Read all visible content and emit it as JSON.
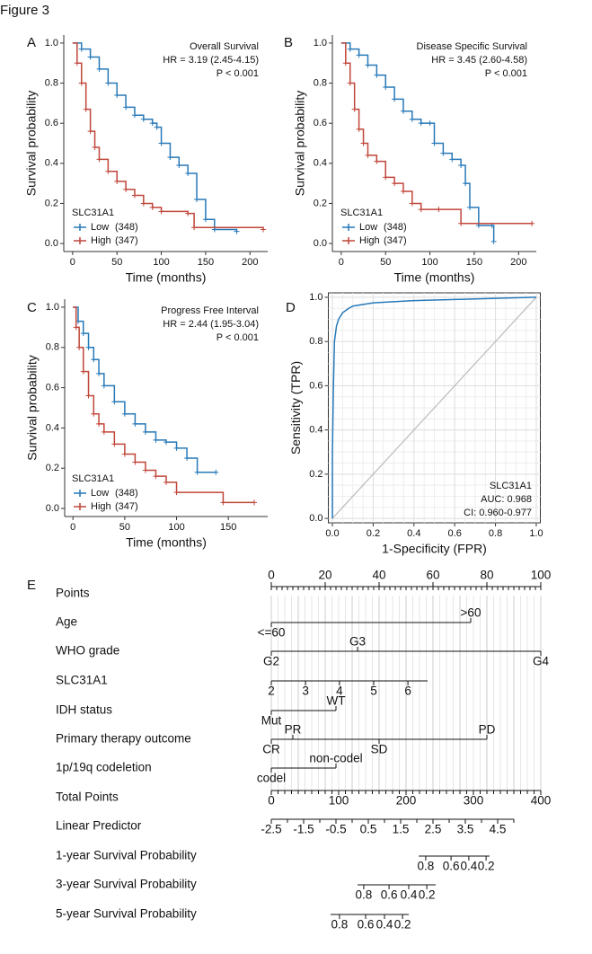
{
  "figure_title": "Figure 3",
  "chart_data": [
    {
      "type": "line",
      "step": true,
      "panel": "A",
      "ylabel": "Survival probability",
      "xlabel": "Time (months)",
      "annotations": [
        "Overall Survival",
        "HR = 3.19 (2.45-4.15)",
        "P < 0.001"
      ],
      "legend_title": "SLC31A1",
      "xlim": [
        -10,
        220
      ],
      "ylim": [
        -0.04,
        1.04
      ],
      "xticks": [
        0,
        50,
        100,
        150,
        200
      ],
      "yticks": [
        {
          "value": 0,
          "label": "0.0"
        },
        0.2,
        0.4,
        0.6,
        0.8,
        {
          "value": 1,
          "label": "1.0"
        }
      ],
      "series": [
        {
          "name": "Low",
          "count_label": "(348)",
          "color": "#2779b8",
          "x": [
            0,
            10,
            20,
            30,
            40,
            50,
            60,
            70,
            80,
            90,
            95,
            100,
            110,
            120,
            130,
            140,
            150,
            160,
            185
          ],
          "values": [
            1,
            0.97,
            0.93,
            0.87,
            0.8,
            0.74,
            0.68,
            0.64,
            0.62,
            0.6,
            0.58,
            0.5,
            0.43,
            0.39,
            0.35,
            0.22,
            0.12,
            0.07,
            0.06
          ]
        },
        {
          "name": "High",
          "count_label": "(347)",
          "color": "#c0463a",
          "x": [
            0,
            5,
            10,
            15,
            20,
            25,
            30,
            40,
            50,
            60,
            70,
            80,
            90,
            100,
            130,
            137,
            215
          ],
          "values": [
            1,
            0.9,
            0.8,
            0.67,
            0.56,
            0.48,
            0.42,
            0.36,
            0.31,
            0.27,
            0.24,
            0.2,
            0.18,
            0.16,
            0.15,
            0.08,
            0.07
          ]
        }
      ]
    },
    {
      "type": "line",
      "step": true,
      "panel": "B",
      "ylabel": "Survival probability",
      "xlabel": "Time (months)",
      "annotations": [
        "Disease Specific Survival",
        "HR = 3.45 (2.60-4.58)",
        "P < 0.001"
      ],
      "legend_title": "SLC31A1",
      "xlim": [
        -10,
        220
      ],
      "ylim": [
        -0.04,
        1.04
      ],
      "xticks": [
        0,
        50,
        100,
        150,
        200
      ],
      "yticks": [
        {
          "value": 0,
          "label": "0.0"
        },
        0.2,
        0.4,
        0.6,
        0.8,
        {
          "value": 1,
          "label": "1.0"
        }
      ],
      "series": [
        {
          "name": "Low",
          "count_label": "(348)",
          "color": "#2779b8",
          "x": [
            0,
            10,
            20,
            30,
            40,
            50,
            60,
            70,
            80,
            90,
            100,
            105,
            115,
            125,
            135,
            140,
            145,
            155,
            170,
            172
          ],
          "values": [
            1,
            0.97,
            0.94,
            0.89,
            0.84,
            0.78,
            0.72,
            0.66,
            0.62,
            0.6,
            0.6,
            0.5,
            0.45,
            0.42,
            0.39,
            0.3,
            0.18,
            0.09,
            0.09,
            0.01
          ]
        },
        {
          "name": "High",
          "count_label": "(347)",
          "color": "#c0463a",
          "x": [
            0,
            5,
            10,
            15,
            20,
            25,
            30,
            40,
            50,
            60,
            70,
            80,
            90,
            110,
            135,
            215
          ],
          "values": [
            1,
            0.9,
            0.8,
            0.67,
            0.57,
            0.5,
            0.44,
            0.41,
            0.33,
            0.3,
            0.26,
            0.2,
            0.17,
            0.17,
            0.1,
            0.1
          ]
        }
      ]
    },
    {
      "type": "line",
      "step": true,
      "panel": "C",
      "ylabel": "Survival probability",
      "xlabel": "Time (months)",
      "annotations": [
        "Progress Free Interval",
        "HR = 2.44 (1.95-3.04)",
        "P < 0.001"
      ],
      "legend_title": "SLC31A1",
      "xlim": [
        -8,
        188
      ],
      "ylim": [
        -0.04,
        1.04
      ],
      "xticks": [
        0,
        50,
        100,
        150
      ],
      "yticks": [
        {
          "value": 0,
          "label": "0.0"
        },
        0.2,
        0.4,
        0.6,
        0.8,
        {
          "value": 1,
          "label": "1.0"
        }
      ],
      "series": [
        {
          "name": "Low",
          "count_label": "(348)",
          "color": "#2779b8",
          "x": [
            0,
            5,
            10,
            15,
            20,
            25,
            30,
            40,
            50,
            60,
            70,
            80,
            90,
            100,
            110,
            120,
            138
          ],
          "values": [
            1,
            0.93,
            0.87,
            0.8,
            0.74,
            0.67,
            0.61,
            0.53,
            0.47,
            0.42,
            0.38,
            0.34,
            0.33,
            0.3,
            0.25,
            0.18,
            0.18
          ]
        },
        {
          "name": "High",
          "count_label": "(347)",
          "color": "#c0463a",
          "x": [
            0,
            3,
            6,
            10,
            15,
            20,
            25,
            30,
            40,
            50,
            60,
            70,
            80,
            90,
            100,
            145,
            175
          ],
          "values": [
            1,
            0.9,
            0.8,
            0.68,
            0.56,
            0.47,
            0.42,
            0.38,
            0.32,
            0.27,
            0.23,
            0.19,
            0.16,
            0.13,
            0.08,
            0.03,
            0.03
          ]
        }
      ]
    },
    {
      "type": "line",
      "step": false,
      "panel": "D",
      "ylabel": "Sensitivity (TPR)",
      "xlabel": "1-Specificity (FPR)",
      "grid": true,
      "diagonal": true,
      "annotations": [
        "SLC31A1",
        "AUC: 0.968",
        "CI: 0.960-0.977"
      ],
      "xlim": [
        -0.02,
        1.02
      ],
      "ylim": [
        -0.02,
        1.02
      ],
      "xticks": [
        {
          "value": 0,
          "label": "0.0"
        },
        0.2,
        0.4,
        0.6,
        0.8,
        {
          "value": 1,
          "label": "1.0"
        }
      ],
      "yticks": [
        {
          "value": 0,
          "label": "0.0"
        },
        0.2,
        0.4,
        0.6,
        0.8,
        {
          "value": 1,
          "label": "1.0"
        }
      ],
      "series": [
        {
          "color": "#2779b8",
          "x": [
            0,
            0,
            0.005,
            0.01,
            0.02,
            0.03,
            0.05,
            0.08,
            0.1,
            0.2,
            0.4,
            0.6,
            0.8,
            1
          ],
          "values": [
            0,
            0.3,
            0.6,
            0.8,
            0.87,
            0.9,
            0.93,
            0.95,
            0.96,
            0.975,
            0.985,
            0.99,
            0.995,
            1
          ]
        }
      ]
    }
  ],
  "nomogram": {
    "panel": "E",
    "rows": [
      {
        "label": "Points",
        "kind": "points",
        "extent": [
          0,
          100
        ],
        "ticks": [
          {
            "value": 0,
            "label": "0",
            "pos": "above"
          },
          {
            "value": 20,
            "label": "20",
            "pos": "above"
          },
          {
            "value": 40,
            "label": "40",
            "pos": "above"
          },
          {
            "value": 60,
            "label": "60",
            "pos": "above"
          },
          {
            "value": 80,
            "label": "80",
            "pos": "above"
          },
          {
            "value": 100,
            "label": "100",
            "pos": "above"
          }
        ]
      },
      {
        "label": "Age",
        "extent": [
          0,
          74
        ],
        "ticks": [
          {
            "value": 0,
            "label": "<=60",
            "pos": "below"
          },
          {
            "value": 74,
            "label": ">60",
            "pos": "above"
          }
        ]
      },
      {
        "label": "WHO grade",
        "extent": [
          0,
          100
        ],
        "ticks": [
          {
            "value": 0,
            "label": "G2",
            "pos": "below"
          },
          {
            "value": 32,
            "label": "G3",
            "pos": "above"
          },
          {
            "value": 100,
            "label": "G4",
            "pos": "below"
          }
        ]
      },
      {
        "label": "SLC31A1",
        "extent": [
          0,
          58
        ],
        "ticks": [
          {
            "value": 0,
            "label": "2",
            "pos": "below"
          },
          {
            "value": 12.7,
            "label": "3",
            "pos": "below"
          },
          {
            "value": 25.3,
            "label": "4",
            "pos": "below"
          },
          {
            "value": 38,
            "label": "5",
            "pos": "below"
          },
          {
            "value": 50.7,
            "label": "6",
            "pos": "below"
          }
        ]
      },
      {
        "label": "IDH status",
        "extent": [
          0,
          24
        ],
        "ticks": [
          {
            "value": 0,
            "label": "Mut",
            "pos": "below"
          },
          {
            "value": 24,
            "label": "WT",
            "pos": "above"
          }
        ]
      },
      {
        "label": "Primary therapy outcome",
        "extent": [
          0,
          80
        ],
        "ticks": [
          {
            "value": 0,
            "label": "CR",
            "pos": "below"
          },
          {
            "value": 8,
            "label": "PR",
            "pos": "above"
          },
          {
            "value": 40,
            "label": "SD",
            "pos": "below"
          },
          {
            "value": 80,
            "label": "PD",
            "pos": "above"
          }
        ]
      },
      {
        "label": "1p/19q codeletion",
        "extent": [
          0,
          24
        ],
        "ticks": [
          {
            "value": 0,
            "label": "codel",
            "pos": "below"
          },
          {
            "value": 24,
            "label": "non-codel",
            "pos": "above"
          }
        ]
      },
      {
        "label": "Total Points",
        "kind": "minor",
        "extent": [
          0,
          100
        ],
        "ticks": [
          {
            "value": 0,
            "label": "0",
            "pos": "below"
          },
          {
            "value": 25,
            "label": "100",
            "pos": "below"
          },
          {
            "value": 50,
            "label": "200",
            "pos": "below"
          },
          {
            "value": 75,
            "label": "300",
            "pos": "below"
          },
          {
            "value": 100,
            "label": "400",
            "pos": "below"
          }
        ]
      },
      {
        "label": "Linear Predictor",
        "kind": "half",
        "extent": [
          0,
          90
        ],
        "ticks": [
          {
            "value": 0,
            "label": "-2.5",
            "pos": "below"
          },
          {
            "value": 12,
            "label": "-1.5",
            "pos": "below"
          },
          {
            "value": 24,
            "label": "-0.5",
            "pos": "below"
          },
          {
            "value": 36,
            "label": "0.5",
            "pos": "below"
          },
          {
            "value": 48,
            "label": "1.5",
            "pos": "below"
          },
          {
            "value": 60,
            "label": "2.5",
            "pos": "below"
          },
          {
            "value": 72,
            "label": "3.5",
            "pos": "below"
          },
          {
            "value": 84,
            "label": "4.5",
            "pos": "below"
          }
        ]
      },
      {
        "label": "1-year Survival Probability",
        "extent": [
          54.7,
          81
        ],
        "ticks": [
          {
            "value": 57.3,
            "label": "0.8",
            "pos": "below"
          },
          {
            "value": 66.7,
            "label": "0.6",
            "pos": "below"
          },
          {
            "value": 73.3,
            "label": "0.4",
            "pos": "below"
          },
          {
            "value": 79.7,
            "label": "0.2",
            "pos": "below"
          }
        ]
      },
      {
        "label": "3-year Survival Probability",
        "extent": [
          32,
          61
        ],
        "ticks": [
          {
            "value": 34.3,
            "label": "0.8",
            "pos": "below"
          },
          {
            "value": 43.7,
            "label": "0.6",
            "pos": "below"
          },
          {
            "value": 51,
            "label": "0.4",
            "pos": "below"
          },
          {
            "value": 57.7,
            "label": "0.2",
            "pos": "below"
          }
        ]
      },
      {
        "label": "5-year Survival Probability",
        "extent": [
          22,
          51
        ],
        "ticks": [
          {
            "value": 25.3,
            "label": "0.8",
            "pos": "below"
          },
          {
            "value": 35,
            "label": "0.6",
            "pos": "below"
          },
          {
            "value": 42,
            "label": "0.4",
            "pos": "below"
          },
          {
            "value": 48.7,
            "label": "0.2",
            "pos": "below"
          }
        ]
      }
    ]
  }
}
